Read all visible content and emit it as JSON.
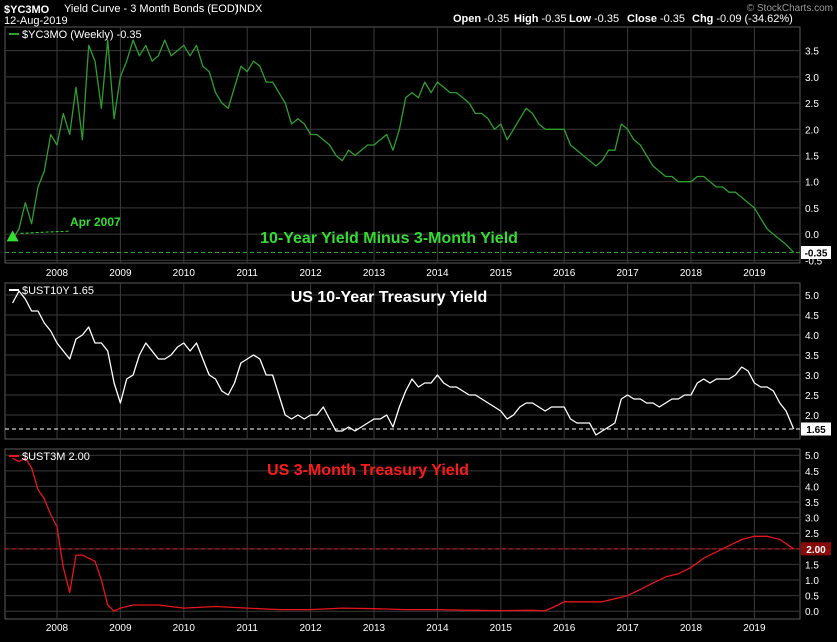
{
  "header": {
    "symbol": "$YC3MO",
    "description": "Yield Curve - 3 Month Bonds (EOD)",
    "exchange": "INDX",
    "date": "12-Aug-2019",
    "watermark": "© StockCharts.com",
    "ohlc": [
      {
        "label": "Open",
        "value": "-0.35"
      },
      {
        "label": "High",
        "value": "-0.35"
      },
      {
        "label": "Low",
        "value": "-0.35"
      },
      {
        "label": "Close",
        "value": "-0.35"
      },
      {
        "label": "Chg",
        "value": "-0.09 (-34.62%)"
      }
    ]
  },
  "colors": {
    "background": "#000000",
    "grid": "#3a3a3a",
    "panel_border": "#5a5a5a",
    "yc3mo": "#2e9e2e",
    "yc3mo_title": "#33dd33",
    "ust10y": "#ffffff",
    "ust3m": "#e8141c",
    "ust3m_title": "#ff1a1a"
  },
  "x_axis_labels": [
    "2008",
    "2009",
    "2010",
    "2011",
    "2012",
    "2013",
    "2014",
    "2015",
    "2016",
    "2017",
    "2018",
    "2019"
  ],
  "chart_data": [
    {
      "type": "line",
      "legend": "$YC3MO (Weekly) -0.35",
      "title": "10-Year Yield Minus 3-Month Yield",
      "annotation": "Apr 2007",
      "last_value": "-0.35",
      "reference_line": -0.35,
      "ylim": [
        -0.55,
        3.95
      ],
      "yticks": [
        -0.5,
        0.0,
        0.5,
        1.0,
        1.5,
        2.0,
        2.5,
        3.0,
        3.5
      ],
      "x": [
        2007.3,
        2007.4,
        2007.5,
        2007.6,
        2007.7,
        2007.8,
        2007.9,
        2008.0,
        2008.1,
        2008.2,
        2008.3,
        2008.4,
        2008.5,
        2008.6,
        2008.7,
        2008.8,
        2008.9,
        2009.0,
        2009.1,
        2009.2,
        2009.3,
        2009.4,
        2009.5,
        2009.6,
        2009.7,
        2009.8,
        2009.9,
        2010.0,
        2010.1,
        2010.2,
        2010.3,
        2010.4,
        2010.5,
        2010.6,
        2010.7,
        2010.8,
        2010.9,
        2011.0,
        2011.1,
        2011.2,
        2011.3,
        2011.4,
        2011.5,
        2011.6,
        2011.7,
        2011.8,
        2011.9,
        2012.0,
        2012.1,
        2012.2,
        2012.3,
        2012.4,
        2012.5,
        2012.6,
        2012.7,
        2012.8,
        2012.9,
        2013.0,
        2013.1,
        2013.2,
        2013.3,
        2013.4,
        2013.5,
        2013.6,
        2013.7,
        2013.8,
        2013.9,
        2014.0,
        2014.1,
        2014.2,
        2014.3,
        2014.4,
        2014.5,
        2014.6,
        2014.7,
        2014.8,
        2014.9,
        2015.0,
        2015.1,
        2015.2,
        2015.3,
        2015.4,
        2015.5,
        2015.6,
        2015.7,
        2015.8,
        2015.9,
        2016.0,
        2016.1,
        2016.2,
        2016.3,
        2016.4,
        2016.5,
        2016.6,
        2016.7,
        2016.8,
        2016.9,
        2017.0,
        2017.1,
        2017.2,
        2017.3,
        2017.4,
        2017.5,
        2017.6,
        2017.7,
        2017.8,
        2017.9,
        2018.0,
        2018.1,
        2018.2,
        2018.3,
        2018.4,
        2018.5,
        2018.6,
        2018.7,
        2018.8,
        2018.9,
        2019.0,
        2019.1,
        2019.2,
        2019.3,
        2019.4,
        2019.5,
        2019.62
      ],
      "values": [
        -0.1,
        0.1,
        0.6,
        0.2,
        0.9,
        1.2,
        1.9,
        1.7,
        2.3,
        1.9,
        2.8,
        1.8,
        3.6,
        3.3,
        2.4,
        3.7,
        2.2,
        3.0,
        3.3,
        3.7,
        3.4,
        3.6,
        3.3,
        3.4,
        3.7,
        3.4,
        3.5,
        3.6,
        3.4,
        3.6,
        3.2,
        3.1,
        2.7,
        2.5,
        2.4,
        2.8,
        3.2,
        3.1,
        3.3,
        3.2,
        2.9,
        2.9,
        2.7,
        2.5,
        2.1,
        2.2,
        2.1,
        1.9,
        1.9,
        1.8,
        1.7,
        1.5,
        1.4,
        1.6,
        1.5,
        1.6,
        1.7,
        1.7,
        1.8,
        1.9,
        1.6,
        2.0,
        2.6,
        2.7,
        2.6,
        2.9,
        2.7,
        2.9,
        2.8,
        2.7,
        2.7,
        2.6,
        2.5,
        2.3,
        2.3,
        2.2,
        2.0,
        2.1,
        1.8,
        2.0,
        2.2,
        2.4,
        2.3,
        2.1,
        2.0,
        2.0,
        2.0,
        2.0,
        1.7,
        1.6,
        1.5,
        1.4,
        1.3,
        1.4,
        1.6,
        1.6,
        2.1,
        2.0,
        1.8,
        1.7,
        1.5,
        1.3,
        1.2,
        1.1,
        1.1,
        1.0,
        1.0,
        1.0,
        1.1,
        1.1,
        1.0,
        0.9,
        0.9,
        0.8,
        0.8,
        0.7,
        0.6,
        0.5,
        0.3,
        0.1,
        0.0,
        -0.1,
        -0.2,
        -0.35
      ]
    },
    {
      "type": "line",
      "legend": "$UST10Y 1.65",
      "title": "US 10-Year Treasury Yield",
      "last_value": "1.65",
      "reference_line": 1.65,
      "ylim": [
        1.4,
        5.3
      ],
      "yticks": [
        2.0,
        2.5,
        3.0,
        3.5,
        4.0,
        4.5,
        5.0
      ],
      "x": [
        2007.3,
        2007.4,
        2007.5,
        2007.6,
        2007.7,
        2007.8,
        2007.9,
        2008.0,
        2008.1,
        2008.2,
        2008.3,
        2008.4,
        2008.5,
        2008.6,
        2008.7,
        2008.8,
        2008.9,
        2009.0,
        2009.1,
        2009.2,
        2009.3,
        2009.4,
        2009.5,
        2009.6,
        2009.7,
        2009.8,
        2009.9,
        2010.0,
        2010.1,
        2010.2,
        2010.3,
        2010.4,
        2010.5,
        2010.6,
        2010.7,
        2010.8,
        2010.9,
        2011.0,
        2011.1,
        2011.2,
        2011.3,
        2011.4,
        2011.5,
        2011.6,
        2011.7,
        2011.8,
        2011.9,
        2012.0,
        2012.1,
        2012.2,
        2012.3,
        2012.4,
        2012.5,
        2012.6,
        2012.7,
        2012.8,
        2012.9,
        2013.0,
        2013.1,
        2013.2,
        2013.3,
        2013.4,
        2013.5,
        2013.6,
        2013.7,
        2013.8,
        2013.9,
        2014.0,
        2014.1,
        2014.2,
        2014.3,
        2014.4,
        2014.5,
        2014.6,
        2014.7,
        2014.8,
        2014.9,
        2015.0,
        2015.1,
        2015.2,
        2015.3,
        2015.4,
        2015.5,
        2015.6,
        2015.7,
        2015.8,
        2015.9,
        2016.0,
        2016.1,
        2016.2,
        2016.3,
        2016.4,
        2016.5,
        2016.6,
        2016.7,
        2016.8,
        2016.9,
        2017.0,
        2017.1,
        2017.2,
        2017.3,
        2017.4,
        2017.5,
        2017.6,
        2017.7,
        2017.8,
        2017.9,
        2018.0,
        2018.1,
        2018.2,
        2018.3,
        2018.4,
        2018.5,
        2018.6,
        2018.7,
        2018.8,
        2018.9,
        2019.0,
        2019.1,
        2019.2,
        2019.3,
        2019.4,
        2019.5,
        2019.62
      ],
      "values": [
        4.8,
        5.1,
        4.9,
        4.6,
        4.6,
        4.3,
        4.1,
        3.8,
        3.6,
        3.4,
        3.9,
        4.0,
        4.2,
        3.8,
        3.8,
        3.6,
        2.8,
        2.3,
        2.9,
        3.0,
        3.5,
        3.8,
        3.6,
        3.4,
        3.4,
        3.5,
        3.7,
        3.8,
        3.6,
        3.8,
        3.4,
        3.0,
        2.9,
        2.6,
        2.5,
        2.8,
        3.3,
        3.4,
        3.5,
        3.4,
        3.0,
        3.0,
        2.5,
        2.0,
        1.9,
        2.0,
        1.9,
        2.0,
        2.0,
        2.2,
        1.9,
        1.6,
        1.6,
        1.7,
        1.6,
        1.7,
        1.8,
        1.9,
        1.9,
        2.0,
        1.7,
        2.2,
        2.6,
        2.9,
        2.7,
        2.8,
        2.8,
        3.0,
        2.8,
        2.7,
        2.7,
        2.6,
        2.5,
        2.5,
        2.4,
        2.3,
        2.2,
        2.1,
        1.9,
        2.0,
        2.2,
        2.3,
        2.3,
        2.2,
        2.1,
        2.2,
        2.2,
        2.2,
        1.9,
        1.8,
        1.8,
        1.8,
        1.5,
        1.6,
        1.7,
        1.8,
        2.4,
        2.5,
        2.4,
        2.4,
        2.3,
        2.3,
        2.2,
        2.3,
        2.4,
        2.4,
        2.5,
        2.5,
        2.8,
        2.9,
        2.8,
        2.9,
        2.9,
        2.9,
        3.0,
        3.2,
        3.1,
        2.8,
        2.7,
        2.7,
        2.6,
        2.3,
        2.1,
        1.65
      ]
    },
    {
      "type": "line",
      "legend": "$UST3M 2.00",
      "title": "US 3-Month Treasury Yield",
      "last_value": "2.00",
      "reference_line": 2.0,
      "ylim": [
        -0.25,
        5.2
      ],
      "yticks": [
        0.0,
        0.5,
        1.0,
        1.5,
        2.0,
        2.5,
        3.0,
        3.5,
        4.0,
        4.5,
        5.0
      ],
      "x": [
        2007.3,
        2007.4,
        2007.5,
        2007.6,
        2007.7,
        2007.8,
        2007.9,
        2008.0,
        2008.1,
        2008.2,
        2008.3,
        2008.4,
        2008.5,
        2008.6,
        2008.7,
        2008.8,
        2008.9,
        2009.0,
        2009.2,
        2009.6,
        2010.0,
        2010.5,
        2011.0,
        2011.5,
        2012.0,
        2012.5,
        2013.0,
        2013.5,
        2014.0,
        2014.5,
        2015.0,
        2015.5,
        2015.7,
        2015.9,
        2016.0,
        2016.2,
        2016.4,
        2016.6,
        2016.8,
        2017.0,
        2017.2,
        2017.4,
        2017.6,
        2017.8,
        2018.0,
        2018.2,
        2018.4,
        2018.6,
        2018.8,
        2019.0,
        2019.2,
        2019.4,
        2019.62
      ],
      "values": [
        4.9,
        4.8,
        4.9,
        4.6,
        3.9,
        3.6,
        3.1,
        2.7,
        1.4,
        0.6,
        1.8,
        1.8,
        1.7,
        1.6,
        1.0,
        0.2,
        0.0,
        0.1,
        0.2,
        0.2,
        0.1,
        0.15,
        0.1,
        0.05,
        0.05,
        0.1,
        0.08,
        0.05,
        0.05,
        0.03,
        0.02,
        0.03,
        0.01,
        0.2,
        0.3,
        0.3,
        0.3,
        0.3,
        0.4,
        0.5,
        0.7,
        0.9,
        1.1,
        1.2,
        1.4,
        1.7,
        1.9,
        2.1,
        2.3,
        2.4,
        2.4,
        2.3,
        2.0
      ]
    }
  ]
}
